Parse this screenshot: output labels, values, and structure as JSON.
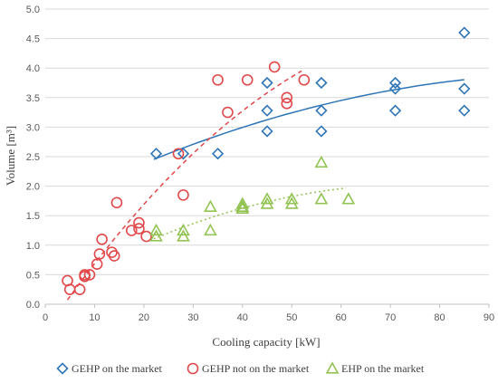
{
  "chart_data": {
    "type": "scatter",
    "xlabel": "Cooling capacity [kW]",
    "ylabel": "Volume [m³]",
    "xlim": [
      0,
      90
    ],
    "ylim": [
      0,
      5
    ],
    "x_ticks": [
      "0",
      "10",
      "20",
      "30",
      "40",
      "50",
      "60",
      "70",
      "80",
      "90"
    ],
    "y_ticks": [
      "0.0",
      "0.5",
      "1.0",
      "1.5",
      "2.0",
      "2.5",
      "3.0",
      "3.5",
      "4.0",
      "4.5",
      "5.0"
    ],
    "grid": "horizontal",
    "legend_position": "bottom",
    "series": [
      {
        "name": "GEHP on the market",
        "marker": "diamond",
        "color": "#2e75b6",
        "trendline": "solid",
        "trend_x": [
          22,
          85
        ],
        "points": [
          [
            22.5,
            2.55
          ],
          [
            28,
            2.55
          ],
          [
            35,
            2.55
          ],
          [
            45,
            3.75
          ],
          [
            45,
            3.28
          ],
          [
            45,
            2.93
          ],
          [
            56,
            3.75
          ],
          [
            56,
            3.28
          ],
          [
            56,
            2.93
          ],
          [
            71,
            3.75
          ],
          [
            71,
            3.65
          ],
          [
            71,
            3.28
          ],
          [
            85,
            4.6
          ],
          [
            85,
            3.65
          ],
          [
            85,
            3.28
          ]
        ]
      },
      {
        "name": "GEHP not on the market",
        "marker": "circle",
        "color": "#e0484a",
        "trendline": "dashed",
        "trend_x": [
          4.5,
          52
        ],
        "points": [
          [
            4.5,
            0.4
          ],
          [
            5,
            0.25
          ],
          [
            7,
            0.25
          ],
          [
            8,
            0.5
          ],
          [
            8,
            0.47
          ],
          [
            9,
            0.5
          ],
          [
            10.5,
            0.68
          ],
          [
            11,
            0.85
          ],
          [
            11.5,
            1.1
          ],
          [
            13.5,
            0.88
          ],
          [
            14,
            0.82
          ],
          [
            14.5,
            1.72
          ],
          [
            17.5,
            1.25
          ],
          [
            19,
            1.38
          ],
          [
            19,
            1.28
          ],
          [
            20.5,
            1.15
          ],
          [
            27,
            2.55
          ],
          [
            28,
            1.85
          ],
          [
            35,
            3.8
          ],
          [
            37,
            3.25
          ],
          [
            41,
            3.8
          ],
          [
            46.5,
            4.02
          ],
          [
            49,
            3.5
          ],
          [
            49,
            3.4
          ],
          [
            52.5,
            3.8
          ]
        ]
      },
      {
        "name": "EHP on the market",
        "marker": "triangle",
        "color": "#92c353",
        "trendline": "dotted",
        "trend_x": [
          22,
          61
        ],
        "points": [
          [
            22.5,
            1.25
          ],
          [
            22.5,
            1.15
          ],
          [
            28,
            1.25
          ],
          [
            28,
            1.15
          ],
          [
            33.5,
            1.65
          ],
          [
            33.5,
            1.25
          ],
          [
            40,
            1.7
          ],
          [
            40,
            1.65
          ],
          [
            40,
            1.62
          ],
          [
            45,
            1.78
          ],
          [
            45,
            1.7
          ],
          [
            50,
            1.78
          ],
          [
            50,
            1.7
          ],
          [
            56,
            2.4
          ],
          [
            56,
            1.78
          ],
          [
            61.5,
            1.78
          ]
        ]
      }
    ]
  }
}
